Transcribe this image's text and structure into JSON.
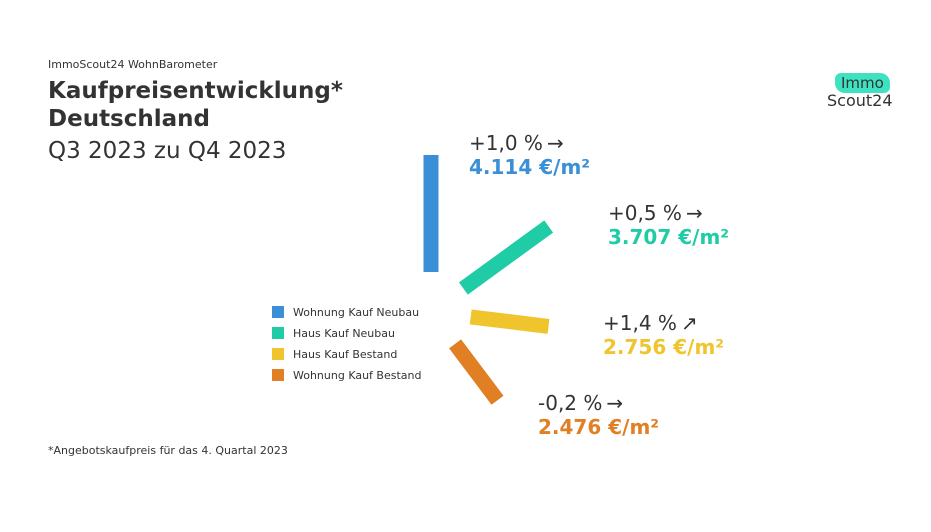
{
  "header": {
    "supertitle": "ImmoScout24 WohnBarometer",
    "title_line1": "Kaufpreisentwicklung*",
    "title_line2": "Deutschland",
    "subtitle": "Q3 2023 zu Q4 2023"
  },
  "footnote": "*Angebotskaufpreis für das 4. Quartal 2023",
  "logo": {
    "top_text": "Immo",
    "bottom_text": "Scout24",
    "accent_color": "#3ee2c0"
  },
  "chart_data": {
    "type": "bar",
    "title": "Kaufpreisentwicklung* Deutschland",
    "subtitle": "Q3 2023 zu Q4 2023",
    "legend_position": "bottom-left",
    "series": [
      {
        "name": "Wohnung Kauf Neubau",
        "change_pct": 1.0,
        "change_label": "+1,0 %",
        "trend_icon": "arrow-right",
        "trend_glyph": "→",
        "price_eur_per_m2": 4114,
        "price_label": "4.114 €/m²",
        "color": "#3a8fd6"
      },
      {
        "name": "Haus Kauf Neubau",
        "change_pct": 0.5,
        "change_label": "+0,5 %",
        "trend_icon": "arrow-right",
        "trend_glyph": "→",
        "price_eur_per_m2": 3707,
        "price_label": "3.707 €/m²",
        "color": "#1fcca5"
      },
      {
        "name": "Haus Kauf Bestand",
        "change_pct": 1.4,
        "change_label": "+1,4 %",
        "trend_icon": "arrow-up-right",
        "trend_glyph": "↗",
        "price_eur_per_m2": 2756,
        "price_label": "2.756 €/m²",
        "color": "#f0c42c"
      },
      {
        "name": "Wohnung Kauf Bestand",
        "change_pct": -0.2,
        "change_label": "-0,2 %",
        "trend_icon": "arrow-right",
        "trend_glyph": "→",
        "price_eur_per_m2": 2476,
        "price_label": "2.476 €/m²",
        "color": "#e07f24"
      }
    ]
  }
}
